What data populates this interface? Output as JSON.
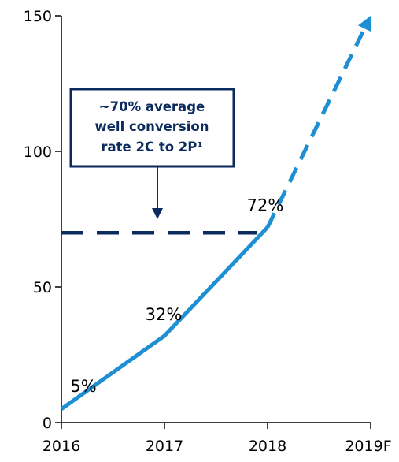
{
  "chart_data": {
    "type": "line",
    "title": "",
    "xlabel": "",
    "ylabel": "",
    "categories": [
      "2016",
      "2017",
      "2018",
      "2019F"
    ],
    "ylim": [
      0,
      150
    ],
    "yticks": [
      "0",
      "50",
      "100",
      "150"
    ],
    "grid": false,
    "series": [
      {
        "values": [
          5,
          32,
          72,
          150
        ],
        "data_labels": [
          "5%",
          "32%",
          "72%",
          ""
        ],
        "forecast_from_index": 2,
        "color": "#1f8fd3"
      }
    ],
    "reference_line": {
      "value": 70,
      "color": "#0b2a5e",
      "style": "dashed"
    },
    "annotation": {
      "lines": [
        "~70% average",
        "well conversion",
        "rate 2C to 2P¹"
      ],
      "border_color": "#0b2a5e",
      "text_color": "#0b2a5e"
    }
  }
}
